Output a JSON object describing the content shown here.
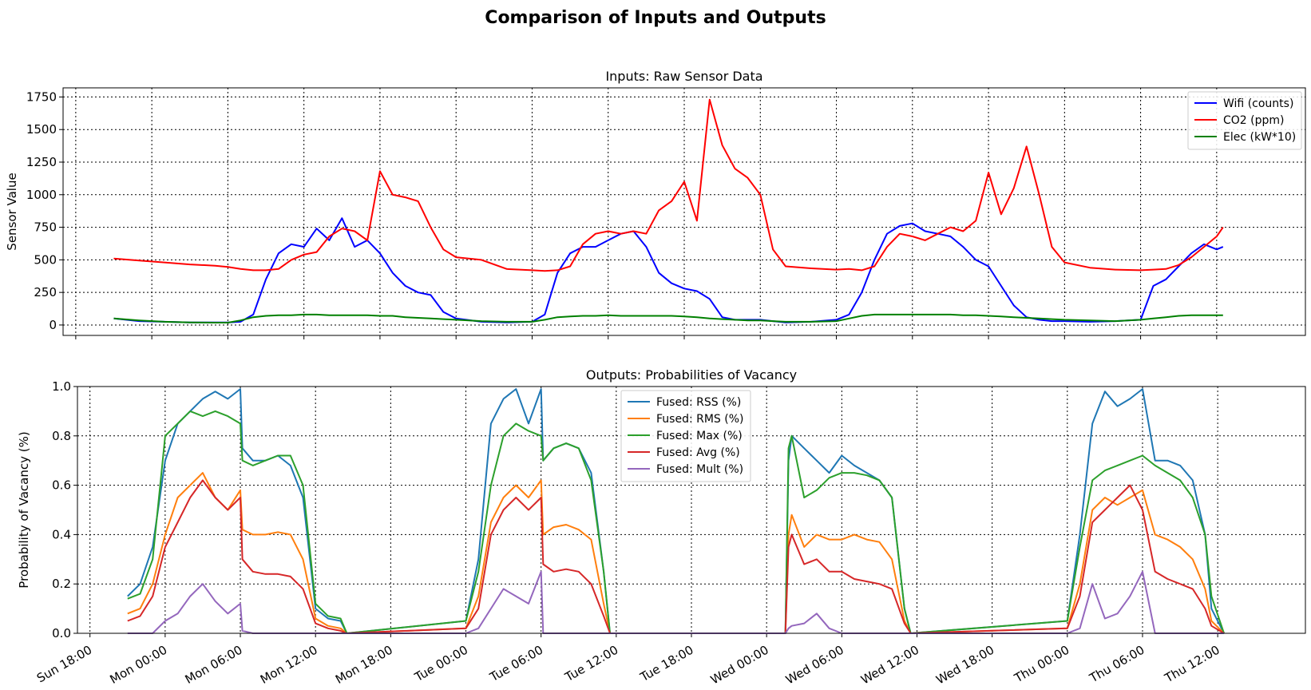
{
  "figure": {
    "title": "Comparison of Inputs and Outputs"
  },
  "chart_data": [
    {
      "type": "line",
      "title": "Inputs: Raw Sensor Data",
      "xlabel": "",
      "ylabel": "Sensor Value",
      "xlim": [
        "Sun 17:00",
        "Thu 19:00"
      ],
      "ylim": [
        -80,
        1820
      ],
      "grid": true,
      "legend_position": "top-right",
      "x_ticks": [
        "Sun 18:00",
        "Mon 00:00",
        "Mon 06:00",
        "Mon 12:00",
        "Mon 18:00",
        "Tue 00:00",
        "Tue 06:00",
        "Tue 12:00",
        "Tue 18:00",
        "Wed 00:00",
        "Wed 06:00",
        "Wed 12:00",
        "Wed 18:00",
        "Thu 00:00",
        "Thu 06:00",
        "Thu 12:00"
      ],
      "y_ticks": [
        "0",
        "250",
        "500",
        "750",
        "1000",
        "1250",
        "1500",
        "1750"
      ],
      "x": [
        "Sun 21:00",
        "Sun 23:00",
        "Mon 01:00",
        "Mon 03:00",
        "Mon 05:00",
        "Mon 06:00",
        "Mon 07:00",
        "Mon 08:00",
        "Mon 09:00",
        "Mon 10:00",
        "Mon 11:00",
        "Mon 12:00",
        "Mon 13:00",
        "Mon 14:00",
        "Mon 15:00",
        "Mon 16:00",
        "Mon 17:00",
        "Mon 18:00",
        "Mon 19:00",
        "Mon 20:00",
        "Mon 21:00",
        "Mon 22:00",
        "Mon 23:00",
        "Tue 00:00",
        "Tue 02:00",
        "Tue 04:00",
        "Tue 06:00",
        "Tue 07:00",
        "Tue 08:00",
        "Tue 09:00",
        "Tue 10:00",
        "Tue 11:00",
        "Tue 12:00",
        "Tue 13:00",
        "Tue 14:00",
        "Tue 15:00",
        "Tue 16:00",
        "Tue 17:00",
        "Tue 18:00",
        "Tue 19:00",
        "Tue 20:00",
        "Tue 21:00",
        "Tue 22:00",
        "Tue 23:00",
        "Wed 00:00",
        "Wed 01:00",
        "Wed 02:00",
        "Wed 04:00",
        "Wed 06:00",
        "Wed 07:00",
        "Wed 08:00",
        "Wed 09:00",
        "Wed 10:00",
        "Wed 11:00",
        "Wed 12:00",
        "Wed 13:00",
        "Wed 14:00",
        "Wed 15:00",
        "Wed 16:00",
        "Wed 17:00",
        "Wed 18:00",
        "Wed 19:00",
        "Wed 20:00",
        "Wed 21:00",
        "Wed 22:00",
        "Wed 23:00",
        "Thu 00:00",
        "Thu 02:00",
        "Thu 04:00",
        "Thu 06:00",
        "Thu 07:00",
        "Thu 08:00",
        "Thu 09:00",
        "Thu 10:00",
        "Thu 11:00",
        "Thu 12:00",
        "Thu 12:30"
      ],
      "series": [
        {
          "name": "Wifi (counts)",
          "color": "#0000ff",
          "values": [
            50,
            30,
            25,
            20,
            20,
            20,
            25,
            80,
            350,
            550,
            620,
            600,
            740,
            650,
            820,
            600,
            650,
            550,
            400,
            300,
            250,
            230,
            100,
            50,
            25,
            20,
            25,
            80,
            400,
            550,
            600,
            600,
            650,
            700,
            720,
            600,
            400,
            320,
            280,
            260,
            200,
            60,
            40,
            40,
            40,
            30,
            20,
            25,
            40,
            80,
            250,
            500,
            700,
            760,
            780,
            720,
            700,
            680,
            600,
            500,
            450,
            300,
            150,
            60,
            40,
            30,
            30,
            25,
            30,
            40,
            300,
            350,
            450,
            550,
            620,
            580,
            600
          ]
        },
        {
          "name": "CO2 (ppm)",
          "color": "#ff0000",
          "values": [
            510,
            495,
            480,
            465,
            455,
            445,
            430,
            420,
            420,
            430,
            500,
            540,
            560,
            680,
            740,
            720,
            650,
            1180,
            1000,
            980,
            950,
            750,
            580,
            520,
            500,
            430,
            420,
            415,
            420,
            450,
            620,
            700,
            720,
            700,
            720,
            700,
            880,
            950,
            1100,
            800,
            1730,
            1380,
            1200,
            1130,
            1000,
            580,
            450,
            435,
            425,
            430,
            420,
            450,
            600,
            700,
            680,
            650,
            700,
            750,
            720,
            800,
            1170,
            850,
            1050,
            1370,
            1000,
            600,
            480,
            440,
            425,
            420,
            425,
            430,
            460,
            520,
            600,
            680,
            750
          ]
        },
        {
          "name": "Elec (kW*10)",
          "color": "#008000",
          "values": [
            50,
            35,
            25,
            20,
            18,
            18,
            35,
            60,
            70,
            75,
            75,
            80,
            80,
            75,
            75,
            75,
            75,
            70,
            70,
            60,
            55,
            50,
            45,
            40,
            30,
            25,
            25,
            40,
            60,
            65,
            70,
            70,
            75,
            70,
            70,
            70,
            70,
            70,
            65,
            60,
            50,
            45,
            40,
            35,
            35,
            30,
            25,
            25,
            30,
            50,
            70,
            80,
            80,
            80,
            80,
            80,
            80,
            80,
            75,
            75,
            70,
            65,
            60,
            55,
            50,
            45,
            40,
            35,
            30,
            40,
            50,
            60,
            70,
            75,
            75,
            75,
            75
          ]
        }
      ]
    },
    {
      "type": "line",
      "title": "Outputs: Probabilities of Vacancy",
      "xlabel": "",
      "ylabel": "Probability of Vacancy (%)",
      "xlim": [
        "Sun 17:00",
        "Thu 19:00"
      ],
      "ylim": [
        0,
        1
      ],
      "grid": true,
      "legend_position": "top-center",
      "x_ticks": [
        "Sun 18:00",
        "Mon 00:00",
        "Mon 06:00",
        "Mon 12:00",
        "Mon 18:00",
        "Tue 00:00",
        "Tue 06:00",
        "Tue 12:00",
        "Tue 18:00",
        "Wed 00:00",
        "Wed 06:00",
        "Wed 12:00",
        "Wed 18:00",
        "Thu 00:00",
        "Thu 06:00",
        "Thu 12:00"
      ],
      "y_ticks": [
        "0.0",
        "0.2",
        "0.4",
        "0.6",
        "0.8",
        "1.0"
      ],
      "x": [
        "Sun 21:00",
        "Sun 22:00",
        "Sun 23:00",
        "Mon 00:00",
        "Mon 01:00",
        "Mon 02:00",
        "Mon 03:00",
        "Mon 04:00",
        "Mon 05:00",
        "Mon 06:00",
        "Mon 06:10",
        "Mon 07:00",
        "Mon 08:00",
        "Mon 09:00",
        "Mon 10:00",
        "Mon 11:00",
        "Mon 12:00",
        "Mon 13:00",
        "Mon 14:00",
        "Mon 14:30",
        "Tue 00:00",
        "Tue 01:00",
        "Tue 02:00",
        "Tue 03:00",
        "Tue 04:00",
        "Tue 05:00",
        "Tue 06:00",
        "Tue 06:10",
        "Tue 07:00",
        "Tue 08:00",
        "Tue 09:00",
        "Tue 10:00",
        "Tue 11:00",
        "Tue 11:30",
        "Wed 01:30",
        "Wed 01:45",
        "Wed 02:00",
        "Wed 03:00",
        "Wed 04:00",
        "Wed 05:00",
        "Wed 06:00",
        "Wed 07:00",
        "Wed 08:00",
        "Wed 09:00",
        "Wed 10:00",
        "Wed 11:00",
        "Wed 11:30",
        "Thu 00:00",
        "Thu 01:00",
        "Thu 02:00",
        "Thu 03:00",
        "Thu 04:00",
        "Thu 05:00",
        "Thu 06:00",
        "Thu 07:00",
        "Thu 08:00",
        "Thu 09:00",
        "Thu 10:00",
        "Thu 11:00",
        "Thu 11:30",
        "Thu 12:30"
      ],
      "series": [
        {
          "name": "Fused: RSS (%)",
          "color": "#1f77b4",
          "values": [
            0.15,
            0.2,
            0.35,
            0.7,
            0.85,
            0.9,
            0.95,
            0.98,
            0.95,
            0.99,
            0.75,
            0.7,
            0.7,
            0.72,
            0.68,
            0.55,
            0.1,
            0.06,
            0.05,
            0.0,
            0.05,
            0.3,
            0.85,
            0.95,
            0.99,
            0.85,
            0.99,
            0.7,
            0.75,
            0.77,
            0.75,
            0.65,
            0.25,
            0.0,
            0.0,
            0.7,
            0.8,
            0.75,
            0.7,
            0.65,
            0.72,
            0.68,
            0.65,
            0.62,
            0.55,
            0.1,
            0.0,
            0.05,
            0.4,
            0.85,
            0.98,
            0.92,
            0.95,
            0.99,
            0.7,
            0.7,
            0.68,
            0.62,
            0.4,
            0.1,
            0.0
          ]
        },
        {
          "name": "Fused: RMS (%)",
          "color": "#ff7f0e",
          "values": [
            0.08,
            0.1,
            0.2,
            0.4,
            0.55,
            0.6,
            0.65,
            0.55,
            0.5,
            0.58,
            0.42,
            0.4,
            0.4,
            0.41,
            0.4,
            0.3,
            0.06,
            0.03,
            0.02,
            0.0,
            0.02,
            0.15,
            0.45,
            0.55,
            0.6,
            0.55,
            0.62,
            0.4,
            0.43,
            0.44,
            0.42,
            0.38,
            0.12,
            0.0,
            0.0,
            0.4,
            0.48,
            0.35,
            0.4,
            0.38,
            0.38,
            0.4,
            0.38,
            0.37,
            0.3,
            0.05,
            0.0,
            0.02,
            0.2,
            0.5,
            0.55,
            0.52,
            0.55,
            0.58,
            0.4,
            0.38,
            0.35,
            0.3,
            0.18,
            0.05,
            0.0
          ]
        },
        {
          "name": "Fused: Max (%)",
          "color": "#2ca02c",
          "values": [
            0.14,
            0.16,
            0.3,
            0.8,
            0.85,
            0.9,
            0.88,
            0.9,
            0.88,
            0.85,
            0.7,
            0.68,
            0.7,
            0.72,
            0.72,
            0.6,
            0.12,
            0.07,
            0.06,
            0.0,
            0.05,
            0.25,
            0.6,
            0.8,
            0.85,
            0.82,
            0.8,
            0.7,
            0.75,
            0.77,
            0.75,
            0.62,
            0.25,
            0.0,
            0.0,
            0.75,
            0.8,
            0.55,
            0.58,
            0.63,
            0.65,
            0.65,
            0.64,
            0.62,
            0.55,
            0.1,
            0.0,
            0.05,
            0.35,
            0.62,
            0.66,
            0.68,
            0.7,
            0.72,
            0.68,
            0.65,
            0.62,
            0.55,
            0.4,
            0.15,
            0.0
          ]
        },
        {
          "name": "Fused: Avg (%)",
          "color": "#d62728",
          "values": [
            0.05,
            0.07,
            0.15,
            0.35,
            0.45,
            0.55,
            0.62,
            0.55,
            0.5,
            0.55,
            0.3,
            0.25,
            0.24,
            0.24,
            0.23,
            0.18,
            0.04,
            0.02,
            0.01,
            0.0,
            0.02,
            0.1,
            0.4,
            0.5,
            0.55,
            0.5,
            0.55,
            0.28,
            0.25,
            0.26,
            0.25,
            0.2,
            0.07,
            0.0,
            0.0,
            0.35,
            0.4,
            0.28,
            0.3,
            0.25,
            0.25,
            0.22,
            0.21,
            0.2,
            0.18,
            0.04,
            0.0,
            0.02,
            0.15,
            0.45,
            0.5,
            0.55,
            0.6,
            0.5,
            0.25,
            0.22,
            0.2,
            0.18,
            0.1,
            0.03,
            0.0
          ]
        },
        {
          "name": "Fused: Mult (%)",
          "color": "#9467bd",
          "values": [
            0.0,
            0.0,
            0.0,
            0.05,
            0.08,
            0.15,
            0.2,
            0.13,
            0.08,
            0.12,
            0.01,
            0.0,
            0.0,
            0.0,
            0.0,
            0.0,
            0.0,
            0.0,
            0.0,
            0.0,
            0.0,
            0.02,
            0.1,
            0.18,
            0.15,
            0.12,
            0.25,
            0.0,
            0.0,
            0.0,
            0.0,
            0.0,
            0.0,
            0.0,
            0.0,
            0.02,
            0.03,
            0.04,
            0.08,
            0.02,
            0.0,
            0.0,
            0.0,
            0.0,
            0.0,
            0.0,
            0.0,
            0.0,
            0.02,
            0.2,
            0.06,
            0.08,
            0.15,
            0.25,
            0.0,
            0.0,
            0.0,
            0.0,
            0.0,
            0.0,
            0.0
          ]
        }
      ]
    }
  ]
}
